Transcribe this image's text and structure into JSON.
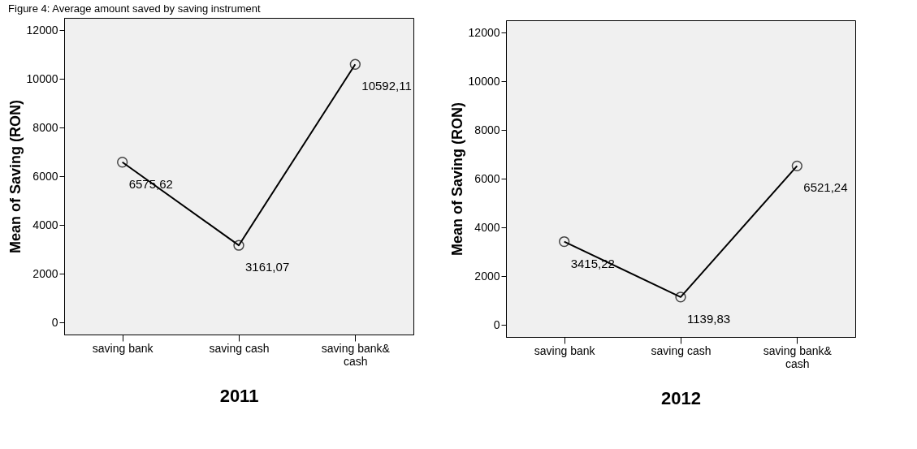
{
  "chart_data": [
    {
      "type": "line",
      "title": "Figure 4: Average amount saved by saving instrument",
      "xlabel": "2011",
      "ylabel": "Mean of Saving (RON)",
      "categories": [
        "saving bank",
        "saving cash",
        "saving bank& cash"
      ],
      "series": [
        {
          "color": "#000000",
          "values": [
            6575.62,
            3161.07,
            10592.11
          ],
          "value_labels": [
            "6575,62",
            "3161,07",
            "10592,11"
          ]
        }
      ],
      "ylim": [
        -500,
        12500
      ],
      "yticks": [
        0,
        2000,
        4000,
        6000,
        8000,
        10000,
        12000
      ],
      "grid": false,
      "legend": false,
      "marker": "circle",
      "line_style": "solid"
    },
    {
      "type": "line",
      "xlabel": "2012",
      "ylabel": "Mean of Saving (RON)",
      "categories": [
        "saving bank",
        "saving cash",
        "saving bank& cash"
      ],
      "series": [
        {
          "color": "#000000",
          "values": [
            3415.22,
            1139.83,
            6521.24
          ],
          "value_labels": [
            "3415,22",
            "1139,83",
            "6521,24"
          ]
        }
      ],
      "ylim": [
        -500,
        12500
      ],
      "yticks": [
        0,
        2000,
        4000,
        6000,
        8000,
        10000,
        12000
      ],
      "grid": false,
      "legend": false,
      "marker": "circle",
      "line_style": "solid"
    }
  ]
}
